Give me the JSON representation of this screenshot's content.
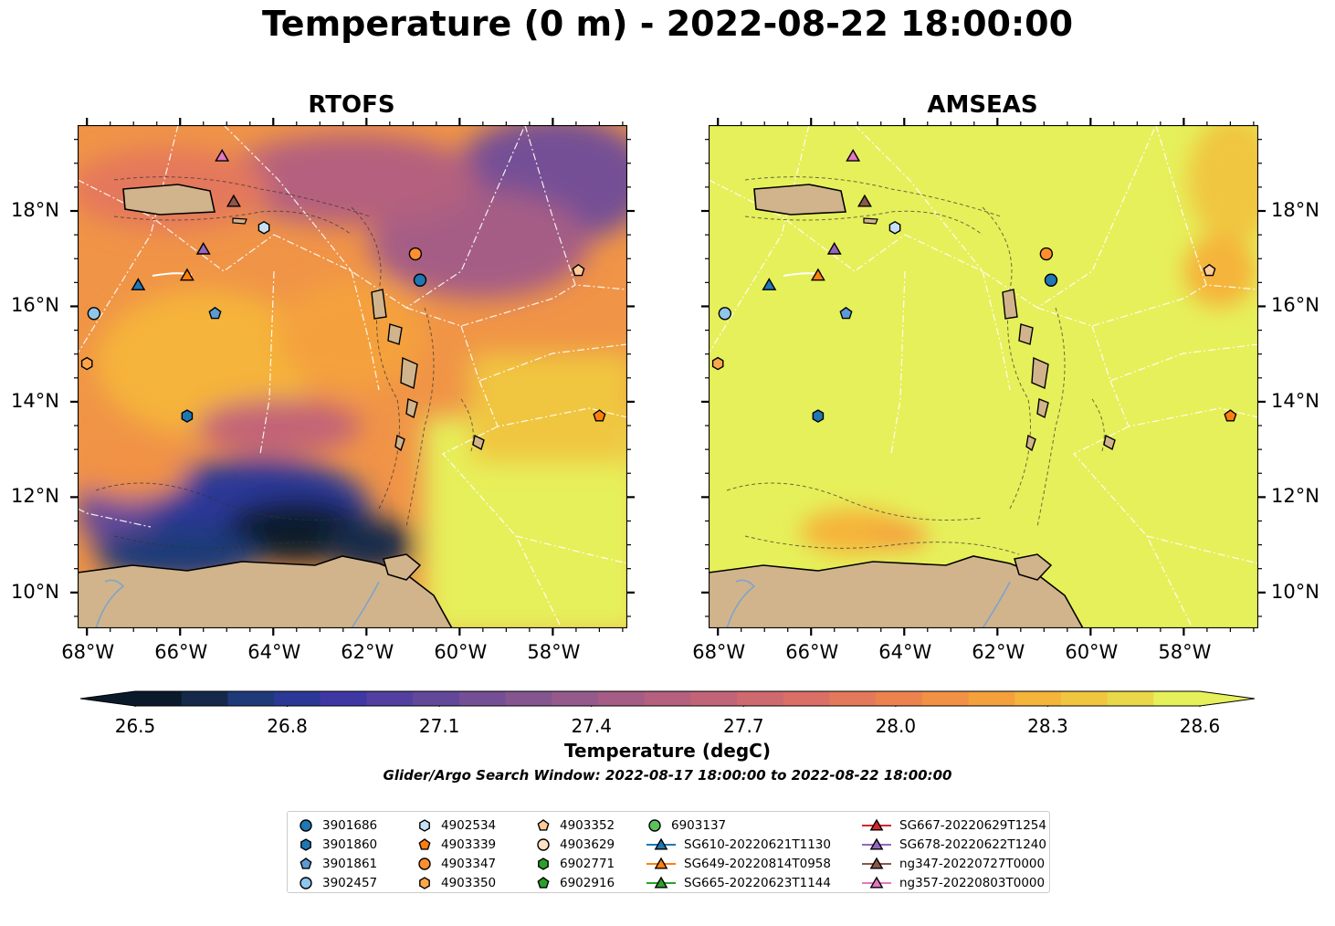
{
  "title": "Temperature (0 m) - 2022-08-22 18:00:00",
  "panels": [
    {
      "name": "RTOFS",
      "ticks_left": true
    },
    {
      "name": "AMSEAS",
      "ticks_left": false
    }
  ],
  "axes": {
    "lon_ticks": [
      "68°W",
      "66°W",
      "64°W",
      "62°W",
      "60°W",
      "58°W"
    ],
    "lat_ticks": [
      "18°N",
      "16°N",
      "14°N",
      "12°N",
      "10°N"
    ]
  },
  "colorbar": {
    "ticks": [
      "26.5",
      "26.8",
      "27.1",
      "27.4",
      "27.7",
      "28.0",
      "28.3",
      "28.6"
    ],
    "title": "Temperature (degC)",
    "range": [
      26.5,
      28.6
    ],
    "extend": "both",
    "colors": [
      "#0a1a2a",
      "#152a4a",
      "#1e3a78",
      "#2c3896",
      "#3f38a4",
      "#523fa0",
      "#63489a",
      "#744f95",
      "#855590",
      "#955a8b",
      "#a55d85",
      "#b4607e",
      "#c26477",
      "#cf6970",
      "#da6f66",
      "#e4785b",
      "#ec834f",
      "#f19145",
      "#f4a13c",
      "#f5b43a",
      "#f0c63f",
      "#e9d84a",
      "#e6f05a"
    ]
  },
  "search_window": "Glider/Argo Search Window: 2022-08-17 18:00:00 to 2022-08-22 18:00:00",
  "legend": [
    [
      {
        "label": "3901686",
        "marker": "circle",
        "color": "#1f77b4"
      },
      {
        "label": "3901860",
        "marker": "hexagon",
        "color": "#1f77b4"
      },
      {
        "label": "3901861",
        "marker": "pentagon",
        "color": "#5b9bd5"
      },
      {
        "label": "3902457",
        "marker": "circle",
        "color": "#8fc6ec"
      }
    ],
    [
      {
        "label": "4902534",
        "marker": "hexagon",
        "color": "#c6e0f5"
      },
      {
        "label": "4903339",
        "marker": "pentagon",
        "color": "#ff7f0e"
      },
      {
        "label": "4903347",
        "marker": "circle",
        "color": "#ff8f2e"
      },
      {
        "label": "4903350",
        "marker": "hexagon",
        "color": "#ffa64d"
      }
    ],
    [
      {
        "label": "4903352",
        "marker": "pentagon",
        "color": "#ffcc99"
      },
      {
        "label": "4903629",
        "marker": "circle",
        "color": "#ffe2c4"
      },
      {
        "label": "6902771",
        "marker": "hexagon",
        "color": "#2ca02c"
      },
      {
        "label": "6902916",
        "marker": "pentagon",
        "color": "#2ca02c"
      }
    ],
    [
      {
        "label": "6903137",
        "marker": "circle",
        "color": "#5cc05c"
      },
      {
        "label": "SG610-20220621T1130",
        "marker": "triangle",
        "color": "#1f77b4",
        "line": true
      },
      {
        "label": "SG649-20220814T0958",
        "marker": "triangle",
        "color": "#ff7f0e",
        "line": true
      },
      {
        "label": "SG665-20220623T1144",
        "marker": "triangle",
        "color": "#2ca02c",
        "line": true
      }
    ],
    [
      {
        "label": "SG667-20220629T1254",
        "marker": "triangle",
        "color": "#d62728",
        "line": true
      },
      {
        "label": "SG678-20220622T1240",
        "marker": "triangle",
        "color": "#9467bd",
        "line": true
      },
      {
        "label": "ng347-20220727T0000",
        "marker": "triangle",
        "color": "#8c564b",
        "line": true
      },
      {
        "label": "ng357-20220803T0000",
        "marker": "triangle",
        "color": "#e377c2",
        "line": true
      }
    ]
  ],
  "map_points": [
    {
      "lon": -65.1,
      "lat": 19.15,
      "marker": "triangle",
      "color": "#e377c2"
    },
    {
      "lon": -64.85,
      "lat": 18.2,
      "marker": "triangle",
      "color": "#8c564b"
    },
    {
      "lon": -64.2,
      "lat": 17.65,
      "marker": "hexagon",
      "color": "#c6e0f5"
    },
    {
      "lon": -65.5,
      "lat": 17.2,
      "marker": "triangle",
      "color": "#9467bd"
    },
    {
      "lon": -65.85,
      "lat": 16.65,
      "marker": "triangle",
      "color": "#ff7f0e"
    },
    {
      "lon": -66.9,
      "lat": 16.45,
      "marker": "triangle",
      "color": "#1f77b4"
    },
    {
      "lon": -67.85,
      "lat": 15.85,
      "marker": "circle",
      "color": "#8fc6ec"
    },
    {
      "lon": -65.25,
      "lat": 15.85,
      "marker": "pentagon",
      "color": "#5b9bd5"
    },
    {
      "lon": -68.0,
      "lat": 14.8,
      "marker": "hexagon",
      "color": "#ffa64d"
    },
    {
      "lon": -65.85,
      "lat": 13.7,
      "marker": "hexagon",
      "color": "#1f77b4"
    },
    {
      "lon": -60.95,
      "lat": 17.1,
      "marker": "circle",
      "color": "#ff8f2e"
    },
    {
      "lon": -60.85,
      "lat": 16.55,
      "marker": "circle",
      "color": "#1f77b4"
    },
    {
      "lon": -57.45,
      "lat": 16.75,
      "marker": "pentagon",
      "color": "#ffcc99"
    },
    {
      "lon": -57.0,
      "lat": 13.7,
      "marker": "pentagon",
      "color": "#ff7f0e"
    }
  ]
}
